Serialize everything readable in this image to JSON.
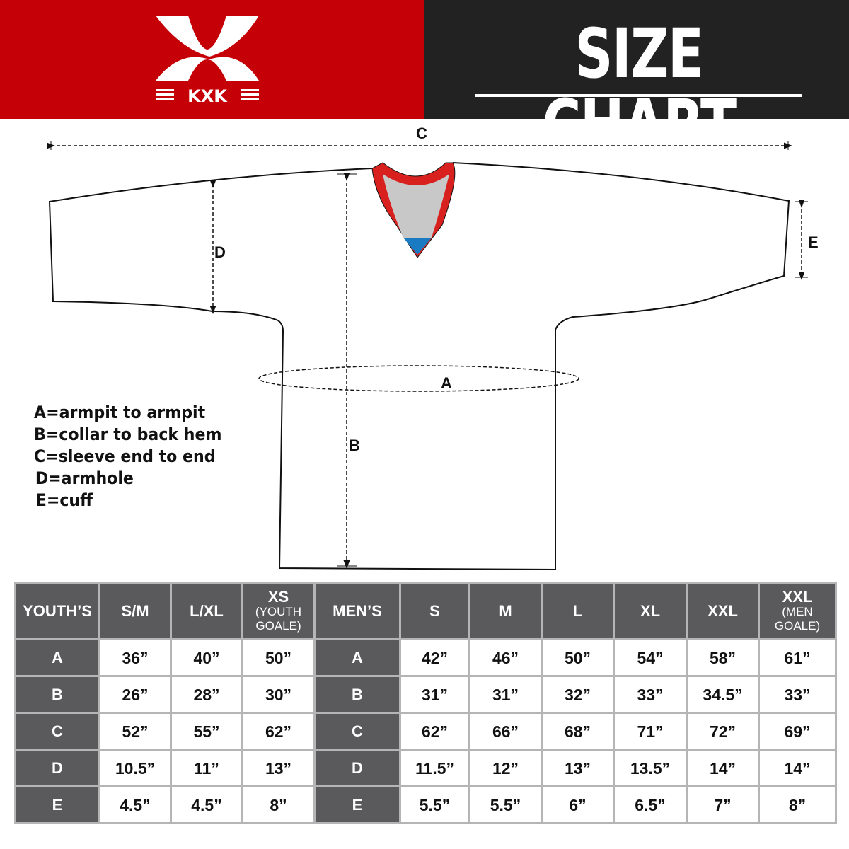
{
  "brand": {
    "logo_text": "KXK",
    "colors": {
      "red": "#c50006",
      "dark": "#222222",
      "table_header": "#5a5a5c"
    }
  },
  "header": {
    "title": "SIZE CHART"
  },
  "diagram": {
    "labels": {
      "a": "A",
      "b": "B",
      "c": "C",
      "d": "D",
      "e": "E"
    }
  },
  "legend": [
    "A=armpit to armpit",
    "B=collar to back hem",
    "C=sleeve end to end",
    "D=armhole",
    "E=cuff"
  ],
  "table": {
    "youth": {
      "header": "YOUTH’S",
      "columns": [
        {
          "main": "S/M",
          "sub": ""
        },
        {
          "main": "L/XL",
          "sub": ""
        },
        {
          "main": "XS",
          "sub": "(YOUTH GOALE)"
        }
      ]
    },
    "men": {
      "header": "MEN’S",
      "columns": [
        {
          "main": "S",
          "sub": ""
        },
        {
          "main": "M",
          "sub": ""
        },
        {
          "main": "L",
          "sub": ""
        },
        {
          "main": "XL",
          "sub": ""
        },
        {
          "main": "XXL",
          "sub": ""
        },
        {
          "main": "XXL",
          "sub": "(MEN GOALE)"
        }
      ]
    },
    "rows": [
      {
        "label": "A",
        "youth": [
          "36”",
          "40”",
          "50”"
        ],
        "men": [
          "42”",
          "46”",
          "50”",
          "54”",
          "58”",
          "61”"
        ]
      },
      {
        "label": "B",
        "youth": [
          "26”",
          "28”",
          "30”"
        ],
        "men": [
          "31”",
          "31”",
          "32”",
          "33”",
          "34.5”",
          "33”"
        ]
      },
      {
        "label": "C",
        "youth": [
          "52”",
          "55”",
          "62”"
        ],
        "men": [
          "62”",
          "66”",
          "68”",
          "71”",
          "72”",
          "69”"
        ]
      },
      {
        "label": "D",
        "youth": [
          "10.5”",
          "11”",
          "13”"
        ],
        "men": [
          "11.5”",
          "12”",
          "13”",
          "13.5”",
          "14”",
          "14”"
        ]
      },
      {
        "label": "E",
        "youth": [
          "4.5”",
          "4.5”",
          "8”"
        ],
        "men": [
          "5.5”",
          "5.5”",
          "6”",
          "6.5”",
          "7”",
          "8”"
        ]
      }
    ]
  }
}
